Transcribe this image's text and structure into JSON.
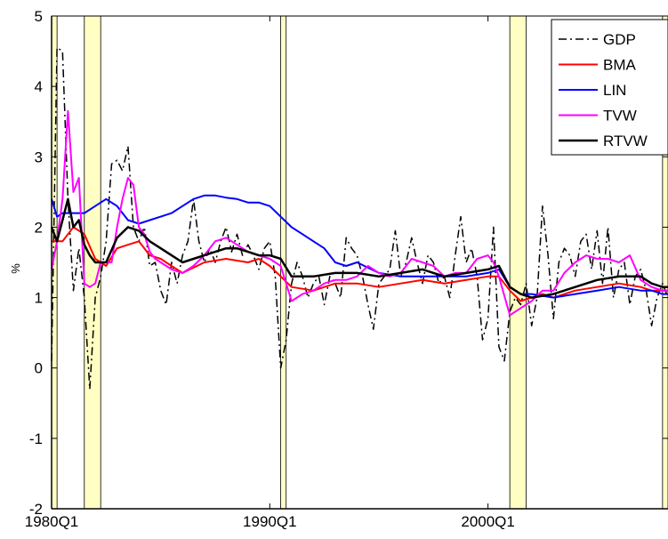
{
  "chart_data": {
    "type": "line",
    "title": "",
    "xlabel": "",
    "ylabel": "%",
    "ylim": [
      -2,
      5
    ],
    "yticks": [
      "-2",
      "-1",
      "0",
      "1",
      "2",
      "3",
      "4",
      "5"
    ],
    "xticks": [
      {
        "label": "1980Q1",
        "t": 1980.0
      },
      {
        "label": "1990Q1",
        "t": 1990.0
      },
      {
        "label": "2000Q1",
        "t": 2000.0
      }
    ],
    "xlim": [
      1980.0,
      2008.25
    ],
    "grid": false,
    "legend_position": "top-right",
    "recessions": [
      [
        1980.0,
        1980.25
      ],
      [
        1981.5,
        1982.25
      ],
      [
        1990.5,
        1990.75
      ],
      [
        2001.0,
        2001.75
      ],
      [
        2008.0,
        2008.25
      ]
    ],
    "series": [
      {
        "name": "GDP",
        "color": "#000000",
        "style": "dashdot",
        "width": 1.5,
        "x": [
          1980.0,
          1980.25,
          1980.5,
          1980.75,
          1981.0,
          1981.25,
          1981.5,
          1981.75,
          1982.0,
          1982.25,
          1982.5,
          1982.75,
          1983.0,
          1983.25,
          1983.5,
          1983.75,
          1984.0,
          1984.25,
          1984.5,
          1984.75,
          1985.0,
          1985.25,
          1985.5,
          1985.75,
          1986.0,
          1986.25,
          1986.5,
          1986.75,
          1987.0,
          1987.25,
          1987.5,
          1987.75,
          1988.0,
          1988.25,
          1988.5,
          1988.75,
          1989.0,
          1989.25,
          1989.5,
          1989.75,
          1990.0,
          1990.25,
          1990.5,
          1990.75,
          1991.0,
          1991.25,
          1991.5,
          1991.75,
          1992.0,
          1992.25,
          1992.5,
          1992.75,
          1993.0,
          1993.25,
          1993.5,
          1993.75,
          1994.0,
          1994.25,
          1994.5,
          1994.75,
          1995.0,
          1995.25,
          1995.5,
          1995.75,
          1996.0,
          1996.25,
          1996.5,
          1996.75,
          1997.0,
          1997.25,
          1997.5,
          1997.75,
          1998.0,
          1998.25,
          1998.5,
          1998.75,
          1999.0,
          1999.25,
          1999.5,
          1999.75,
          2000.0,
          2000.25,
          2000.5,
          2000.75,
          2001.0,
          2001.25,
          2001.5,
          2001.75,
          2002.0,
          2002.25,
          2002.5,
          2002.75,
          2003.0,
          2003.25,
          2003.5,
          2003.75,
          2004.0,
          2004.25,
          2004.5,
          2004.75,
          2005.0,
          2005.25,
          2005.5,
          2005.75,
          2006.0,
          2006.25,
          2006.5,
          2006.75,
          2007.0,
          2007.25,
          2007.5,
          2007.75,
          2008.0,
          2008.25
        ],
        "y": [
          0.1,
          4.55,
          4.5,
          2.4,
          1.1,
          1.7,
          1.0,
          -0.3,
          1.0,
          1.3,
          1.8,
          2.9,
          2.95,
          2.8,
          3.15,
          2.0,
          1.8,
          2.0,
          1.45,
          1.5,
          1.1,
          0.9,
          1.5,
          1.2,
          1.6,
          1.8,
          2.4,
          1.8,
          1.5,
          1.7,
          1.5,
          1.8,
          2.0,
          1.65,
          1.9,
          1.6,
          1.75,
          1.6,
          1.4,
          1.7,
          1.8,
          1.3,
          0.0,
          0.4,
          1.2,
          1.5,
          1.3,
          1.0,
          1.2,
          1.3,
          0.9,
          1.3,
          1.2,
          1.0,
          1.85,
          1.7,
          1.6,
          1.3,
          0.9,
          0.55,
          1.2,
          1.3,
          1.4,
          1.95,
          1.3,
          1.5,
          1.85,
          1.5,
          1.2,
          1.6,
          1.5,
          1.2,
          1.3,
          1.0,
          1.6,
          2.15,
          1.5,
          1.7,
          1.3,
          0.4,
          0.7,
          2.0,
          0.3,
          0.1,
          0.8,
          1.0,
          0.9,
          1.2,
          0.6,
          1.0,
          2.3,
          1.6,
          0.7,
          1.5,
          1.7,
          1.6,
          1.3,
          1.8,
          1.9,
          1.4,
          1.95,
          1.2,
          2.0,
          1.0,
          1.4,
          1.5,
          0.9,
          1.3,
          1.4,
          1.1,
          0.6,
          1.0,
          1.2,
          1.0
        ]
      },
      {
        "name": "BMA",
        "color": "#ff0000",
        "style": "solid",
        "width": 2,
        "x": [
          1980.0,
          1980.5,
          1981.0,
          1981.5,
          1982.0,
          1982.5,
          1983.0,
          1983.5,
          1984.0,
          1984.5,
          1985.0,
          1985.5,
          1986.0,
          1987.0,
          1988.0,
          1989.0,
          1989.5,
          1990.0,
          1990.5,
          1991.0,
          1992.0,
          1993.0,
          1994.0,
          1995.0,
          1996.0,
          1997.0,
          1998.0,
          1999.0,
          2000.0,
          2000.5,
          2001.0,
          2001.5,
          2002.0,
          2002.5,
          2003.0,
          2004.0,
          2005.0,
          2006.0,
          2007.0,
          2007.5,
          2008.0,
          2008.25
        ],
        "y": [
          1.8,
          1.8,
          2.0,
          1.9,
          1.55,
          1.45,
          1.7,
          1.75,
          1.8,
          1.6,
          1.55,
          1.45,
          1.35,
          1.5,
          1.55,
          1.5,
          1.55,
          1.45,
          1.3,
          1.15,
          1.1,
          1.2,
          1.2,
          1.15,
          1.2,
          1.25,
          1.2,
          1.25,
          1.3,
          1.3,
          1.1,
          0.95,
          1.0,
          1.05,
          1.0,
          1.1,
          1.15,
          1.2,
          1.15,
          1.1,
          1.1,
          1.1
        ]
      },
      {
        "name": "LIN",
        "color": "#0000ff",
        "style": "solid",
        "width": 2,
        "x": [
          1980.0,
          1980.25,
          1980.5,
          1981.0,
          1981.5,
          1982.0,
          1982.5,
          1983.0,
          1983.5,
          1984.0,
          1984.5,
          1985.0,
          1985.5,
          1986.0,
          1986.5,
          1987.0,
          1987.5,
          1988.0,
          1988.5,
          1989.0,
          1989.5,
          1990.0,
          1990.5,
          1991.0,
          1991.5,
          1992.0,
          1992.5,
          1993.0,
          1993.5,
          1994.0,
          1995.0,
          1996.0,
          1997.0,
          1998.0,
          1999.0,
          2000.0,
          2000.5,
          2001.0,
          2001.5,
          2002.0,
          2003.0,
          2004.0,
          2005.0,
          2006.0,
          2007.0,
          2007.5,
          2008.0,
          2008.25
        ],
        "y": [
          2.4,
          2.15,
          2.2,
          2.2,
          2.2,
          2.3,
          2.4,
          2.3,
          2.1,
          2.05,
          2.1,
          2.15,
          2.2,
          2.3,
          2.4,
          2.45,
          2.45,
          2.42,
          2.4,
          2.35,
          2.35,
          2.3,
          2.15,
          2.0,
          1.9,
          1.8,
          1.7,
          1.5,
          1.45,
          1.5,
          1.35,
          1.3,
          1.3,
          1.3,
          1.3,
          1.35,
          1.4,
          1.15,
          1.05,
          1.05,
          1.0,
          1.05,
          1.1,
          1.15,
          1.1,
          1.1,
          1.05,
          1.05
        ]
      },
      {
        "name": "TVW",
        "color": "#ff00ff",
        "style": "solid",
        "width": 2,
        "x": [
          1980.0,
          1980.25,
          1980.5,
          1980.75,
          1981.0,
          1981.25,
          1981.5,
          1981.75,
          1982.0,
          1982.25,
          1982.5,
          1982.75,
          1983.0,
          1983.25,
          1983.5,
          1983.75,
          1984.0,
          1984.25,
          1984.5,
          1984.75,
          1985.0,
          1985.5,
          1986.0,
          1986.5,
          1987.0,
          1987.5,
          1988.0,
          1988.5,
          1989.0,
          1989.5,
          1990.0,
          1990.5,
          1991.0,
          1991.5,
          1992.0,
          1992.5,
          1993.0,
          1993.5,
          1994.0,
          1994.5,
          1995.0,
          1995.5,
          1996.0,
          1996.5,
          1997.0,
          1997.5,
          1998.0,
          1998.5,
          1999.0,
          1999.5,
          2000.0,
          2000.25,
          2000.5,
          2001.0,
          2001.5,
          2002.0,
          2002.5,
          2003.0,
          2003.5,
          2004.0,
          2004.5,
          2005.0,
          2005.5,
          2006.0,
          2006.5,
          2007.0,
          2007.5,
          2008.0,
          2008.25
        ],
        "y": [
          1.4,
          1.8,
          2.4,
          3.65,
          2.5,
          2.7,
          1.2,
          1.15,
          1.2,
          1.5,
          1.5,
          1.5,
          2.0,
          2.4,
          2.7,
          2.6,
          2.0,
          1.9,
          1.65,
          1.55,
          1.5,
          1.4,
          1.35,
          1.45,
          1.6,
          1.8,
          1.85,
          1.75,
          1.65,
          1.6,
          1.55,
          1.45,
          0.95,
          1.05,
          1.1,
          1.2,
          1.25,
          1.25,
          1.3,
          1.45,
          1.35,
          1.3,
          1.35,
          1.55,
          1.5,
          1.45,
          1.3,
          1.35,
          1.35,
          1.55,
          1.6,
          1.5,
          1.3,
          0.75,
          0.85,
          0.95,
          1.1,
          1.1,
          1.35,
          1.5,
          1.6,
          1.55,
          1.55,
          1.5,
          1.6,
          1.25,
          1.15,
          1.1,
          1.1
        ]
      },
      {
        "name": "RTVW",
        "color": "#000000",
        "style": "solid",
        "width": 2.5,
        "x": [
          1980.0,
          1980.25,
          1980.5,
          1980.75,
          1981.0,
          1981.25,
          1981.5,
          1981.75,
          1982.0,
          1982.5,
          1983.0,
          1983.5,
          1984.0,
          1984.5,
          1985.0,
          1985.5,
          1986.0,
          1986.5,
          1987.0,
          1987.5,
          1988.0,
          1988.5,
          1989.0,
          1989.5,
          1990.0,
          1990.5,
          1991.0,
          1992.0,
          1993.0,
          1994.0,
          1995.0,
          1996.0,
          1997.0,
          1998.0,
          1999.0,
          2000.0,
          2000.5,
          2001.0,
          2001.5,
          2002.0,
          2003.0,
          2004.0,
          2005.0,
          2006.0,
          2007.0,
          2007.5,
          2008.0,
          2008.25
        ],
        "y": [
          2.0,
          1.8,
          2.1,
          2.4,
          2.0,
          2.1,
          1.75,
          1.6,
          1.5,
          1.5,
          1.85,
          2.0,
          1.95,
          1.8,
          1.7,
          1.6,
          1.5,
          1.55,
          1.6,
          1.65,
          1.7,
          1.7,
          1.65,
          1.6,
          1.6,
          1.55,
          1.3,
          1.3,
          1.35,
          1.35,
          1.3,
          1.35,
          1.4,
          1.3,
          1.35,
          1.4,
          1.45,
          1.15,
          1.05,
          1.0,
          1.05,
          1.15,
          1.25,
          1.3,
          1.3,
          1.2,
          1.15,
          1.15
        ]
      }
    ]
  }
}
